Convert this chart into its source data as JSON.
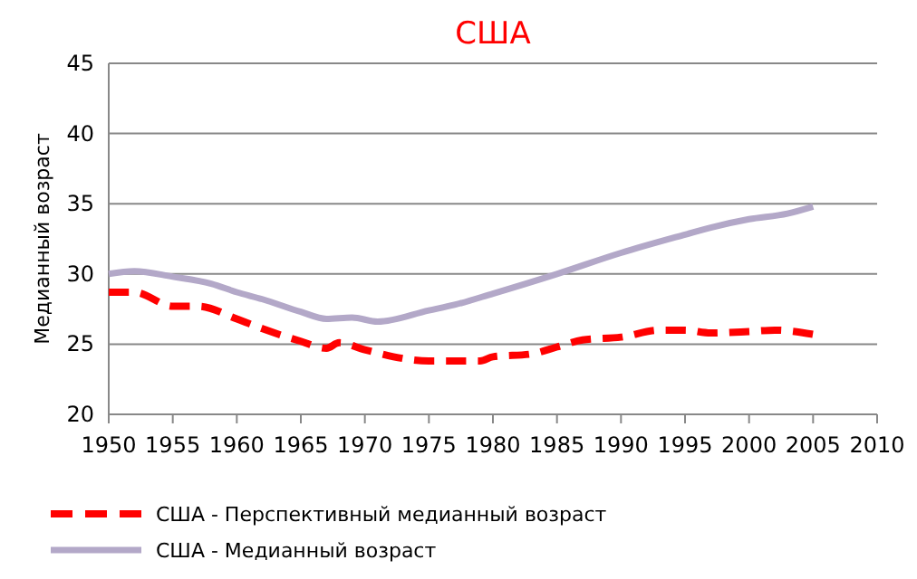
{
  "chart_data": {
    "type": "line",
    "title": "США",
    "ylabel": "Медианный возраст",
    "xlim": [
      1950,
      2010
    ],
    "xticks": [
      1950,
      1955,
      1960,
      1965,
      1970,
      1975,
      1980,
      1985,
      1990,
      1995,
      2000,
      2005,
      2010
    ],
    "ylim": [
      20,
      45
    ],
    "yticks": [
      20,
      25,
      30,
      35,
      40,
      45
    ],
    "grid": "y",
    "legend": "bottom",
    "marker": "none",
    "series": [
      {
        "name": "США - Перспективный медианный возраст",
        "color": "#ff0000",
        "line_style": "dashed",
        "x": [
          1950,
          1952,
          1955,
          1957,
          1960,
          1962,
          1965,
          1967,
          1968,
          1970,
          1975,
          1977,
          1979,
          1980,
          1983,
          1985,
          1987,
          1990,
          1993,
          1995,
          1997,
          2000,
          2002,
          2005
        ],
        "values": [
          28.7,
          28.7,
          27.7,
          27.7,
          26.8,
          26.1,
          25.2,
          24.7,
          25.1,
          24.6,
          23.8,
          23.8,
          23.8,
          24.1,
          24.3,
          24.8,
          25.3,
          25.5,
          26.0,
          26.0,
          25.8,
          25.9,
          26.0,
          25.7
        ]
      },
      {
        "name": "США - Медианный возраст",
        "color": "#b3a8c8",
        "line_style": "solid",
        "x": [
          1950,
          1952,
          1955,
          1958,
          1960,
          1962,
          1965,
          1967,
          1969,
          1971,
          1975,
          1977,
          1980,
          1985,
          1990,
          1995,
          1997,
          2000,
          2003,
          2005
        ],
        "values": [
          30.0,
          30.2,
          29.8,
          29.3,
          28.7,
          28.2,
          27.3,
          26.8,
          26.9,
          26.6,
          27.4,
          27.8,
          28.6,
          30.0,
          31.5,
          32.8,
          33.3,
          33.9,
          34.3,
          34.8
        ]
      }
    ]
  }
}
